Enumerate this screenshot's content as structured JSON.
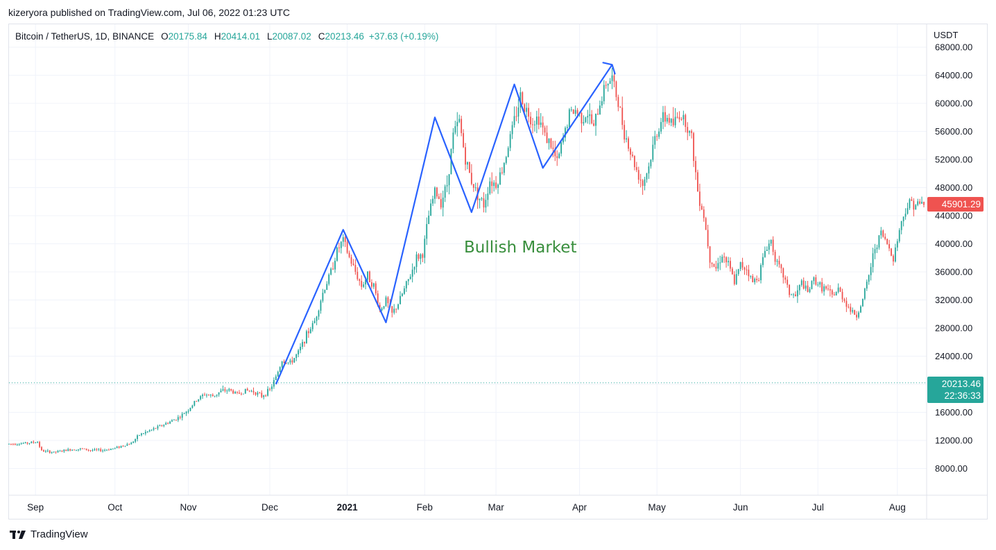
{
  "header": {
    "published_line": "kizeryora published on TradingView.com, Jul 06, 2022 01:23 UTC"
  },
  "legend": {
    "symbol": "Bitcoin / TetherUS, 1D, BINANCE",
    "open_label": "O",
    "open_value": "20175.84",
    "high_label": "H",
    "high_value": "20414.01",
    "low_label": "L",
    "low_value": "20087.02",
    "close_label": "C",
    "close_value": "20213.46",
    "change": "+37.63 (+0.19%)"
  },
  "price_scale": {
    "unit": "USDT",
    "ticks": [
      "68000.00",
      "64000.00",
      "60000.00",
      "56000.00",
      "52000.00",
      "48000.00",
      "44000.00",
      "40000.00",
      "36000.00",
      "32000.00",
      "28000.00",
      "24000.00",
      "20000.00",
      "16000.00",
      "12000.00",
      "8000.00"
    ],
    "tick_values": [
      68000,
      64000,
      60000,
      56000,
      52000,
      48000,
      44000,
      40000,
      36000,
      32000,
      28000,
      24000,
      20000,
      16000,
      12000,
      8000
    ]
  },
  "badges": {
    "last_price_red": "45901.29",
    "current_price": "20213.46",
    "countdown": "22:36:33"
  },
  "annotation": {
    "text": "Bullish Market"
  },
  "footer": {
    "brand": "TradingView"
  },
  "colors": {
    "up": "#26a69a",
    "down": "#ef5350",
    "trend_line": "#2962ff",
    "annotation": "#388e3c",
    "grid": "#f0f3fa"
  },
  "chart_data": {
    "type": "candlestick",
    "title": "",
    "xlabel": "",
    "ylabel": "USDT",
    "ylim": [
      4000,
      70000
    ],
    "x_ticks": [
      "Sep",
      "Oct",
      "Nov",
      "Dec",
      "2021",
      "Feb",
      "Mar",
      "Apr",
      "May",
      "Jun",
      "Jul",
      "Aug"
    ],
    "x_tick_bold": "2021",
    "current_price_line": 20213.46,
    "price_path": [
      [
        0,
        11500
      ],
      [
        8,
        11600
      ],
      [
        14,
        11800
      ],
      [
        16,
        10500
      ],
      [
        22,
        10300
      ],
      [
        30,
        10700
      ],
      [
        36,
        10800
      ],
      [
        40,
        10600
      ],
      [
        46,
        10600
      ],
      [
        52,
        10900
      ],
      [
        56,
        11300
      ],
      [
        60,
        11600
      ],
      [
        64,
        12800
      ],
      [
        70,
        13500
      ],
      [
        74,
        14000
      ],
      [
        80,
        14800
      ],
      [
        84,
        15400
      ],
      [
        88,
        16400
      ],
      [
        92,
        17700
      ],
      [
        96,
        18600
      ],
      [
        100,
        18300
      ],
      [
        104,
        19000
      ],
      [
        108,
        19200
      ],
      [
        112,
        18600
      ],
      [
        116,
        19100
      ],
      [
        120,
        19000
      ],
      [
        124,
        18300
      ],
      [
        128,
        19200
      ],
      [
        131,
        21000
      ],
      [
        134,
        23400
      ],
      [
        138,
        23000
      ],
      [
        142,
        24500
      ],
      [
        146,
        27000
      ],
      [
        150,
        29000
      ],
      [
        154,
        33000
      ],
      [
        158,
        36000
      ],
      [
        161,
        39000
      ],
      [
        164,
        40500
      ],
      [
        167,
        38000
      ],
      [
        170,
        36000
      ],
      [
        173,
        34000
      ],
      [
        176,
        35500
      ],
      [
        179,
        34000
      ],
      [
        182,
        30500
      ],
      [
        185,
        32000
      ],
      [
        188,
        30000
      ],
      [
        191,
        31500
      ],
      [
        194,
        33500
      ],
      [
        197,
        35500
      ],
      [
        200,
        38000
      ],
      [
        203,
        38500
      ],
      [
        206,
        44000
      ],
      [
        209,
        47500
      ],
      [
        212,
        46000
      ],
      [
        215,
        48500
      ],
      [
        218,
        55500
      ],
      [
        221,
        57500
      ],
      [
        224,
        52000
      ],
      [
        227,
        49000
      ],
      [
        230,
        47000
      ],
      [
        233,
        45500
      ],
      [
        236,
        49000
      ],
      [
        239,
        48500
      ],
      [
        242,
        50500
      ],
      [
        245,
        54000
      ],
      [
        248,
        57500
      ],
      [
        251,
        61000
      ],
      [
        254,
        59000
      ],
      [
        257,
        57500
      ],
      [
        260,
        58000
      ],
      [
        263,
        55500
      ],
      [
        266,
        54000
      ],
      [
        269,
        51500
      ],
      [
        272,
        55000
      ],
      [
        275,
        58500
      ],
      [
        278,
        59000
      ],
      [
        281,
        58000
      ],
      [
        284,
        58500
      ],
      [
        287,
        56500
      ],
      [
        290,
        60000
      ],
      [
        293,
        63000
      ],
      [
        296,
        63500
      ],
      [
        299,
        60000
      ],
      [
        302,
        56000
      ],
      [
        305,
        53000
      ],
      [
        308,
        50500
      ],
      [
        311,
        48500
      ],
      [
        314,
        51000
      ],
      [
        317,
        55000
      ],
      [
        320,
        57500
      ],
      [
        323,
        58000
      ],
      [
        326,
        57000
      ],
      [
        329,
        58500
      ],
      [
        332,
        57500
      ],
      [
        335,
        55000
      ],
      [
        338,
        47500
      ],
      [
        341,
        44000
      ],
      [
        344,
        38000
      ],
      [
        347,
        36500
      ],
      [
        350,
        38500
      ],
      [
        353,
        37000
      ],
      [
        356,
        34500
      ],
      [
        359,
        37000
      ],
      [
        362,
        36500
      ],
      [
        365,
        34500
      ],
      [
        368,
        35500
      ],
      [
        371,
        39000
      ],
      [
        374,
        40500
      ],
      [
        377,
        37000
      ],
      [
        380,
        35500
      ],
      [
        383,
        33000
      ],
      [
        386,
        32500
      ],
      [
        389,
        34500
      ],
      [
        392,
        33000
      ],
      [
        395,
        35000
      ],
      [
        398,
        34000
      ],
      [
        401,
        33500
      ],
      [
        404,
        32500
      ],
      [
        407,
        33500
      ],
      [
        410,
        32000
      ],
      [
        413,
        30500
      ],
      [
        416,
        29800
      ],
      [
        419,
        32000
      ],
      [
        422,
        35500
      ],
      [
        425,
        39500
      ],
      [
        428,
        41500
      ],
      [
        431,
        40000
      ],
      [
        434,
        38000
      ],
      [
        437,
        42000
      ],
      [
        440,
        45000
      ],
      [
        443,
        46000
      ],
      [
        446,
        45500
      ],
      [
        449,
        45900
      ]
    ],
    "trend_lines": [
      [
        [
          131,
          20000
        ],
        [
          164,
          42000
        ],
        [
          185,
          28800
        ],
        [
          209,
          58000
        ],
        [
          227,
          44500
        ],
        [
          248,
          62700
        ],
        [
          262,
          50800
        ],
        [
          296,
          65500
        ]
      ]
    ]
  }
}
